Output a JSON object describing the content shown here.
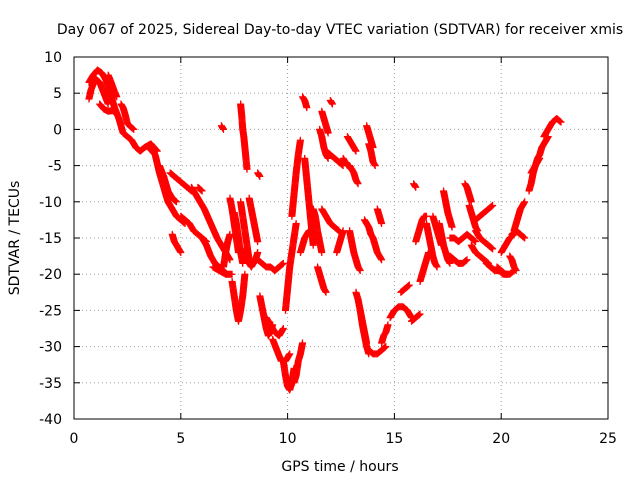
{
  "chart_data": {
    "type": "scatter",
    "title": "Day 067 of 2025, Sidereal Day-to-day VTEC variation (SDTVAR) for receiver xmis",
    "xlabel": "GPS time / hours",
    "ylabel": "SDTVAR / TECUs",
    "xlim": [
      0,
      25
    ],
    "ylim": [
      -40,
      10
    ],
    "xticks": [
      0,
      5,
      10,
      15,
      20,
      25
    ],
    "yticks": [
      10,
      5,
      0,
      -5,
      -10,
      -15,
      -20,
      -25,
      -30,
      -35,
      -40
    ],
    "grid": true,
    "legend": "none",
    "marker": "plus",
    "color": "#ff0000",
    "tracks": [
      {
        "x": [
          0.7,
          0.9,
          1.1,
          1.3,
          1.5,
          1.7,
          1.9,
          2.1,
          2.3,
          2.5,
          2.7,
          2.9,
          3.1,
          3.3,
          3.6,
          3.9
        ],
        "y": [
          6.5,
          7.5,
          8.2,
          7.8,
          6.8,
          5.0,
          3.0,
          1.5,
          -0.5,
          -1.0,
          -1.5,
          -2.5,
          -3.0,
          -2.5,
          -2.0,
          -3.0
        ]
      },
      {
        "x": [
          0.7,
          0.8,
          1.0,
          1.2,
          1.4,
          1.6
        ],
        "y": [
          4.2,
          5.5,
          7.0,
          6.5,
          5.0,
          3.5
        ]
      },
      {
        "x": [
          1.2,
          1.4,
          1.6,
          1.8,
          2.0
        ],
        "y": [
          3.5,
          2.8,
          2.5,
          2.6,
          2.2
        ]
      },
      {
        "x": [
          1.6,
          1.7,
          1.8,
          1.9,
          2.0
        ],
        "y": [
          7.5,
          6.8,
          6.0,
          5.2,
          4.5
        ]
      },
      {
        "x": [
          2.2,
          2.3,
          2.4,
          2.5,
          2.6,
          2.8
        ],
        "y": [
          3.5,
          3.0,
          2.0,
          0.8,
          0.5,
          0.0
        ]
      },
      {
        "x": [
          3.5,
          3.8,
          4.0,
          4.2,
          4.4,
          4.6,
          4.8,
          5.0,
          5.2
        ],
        "y": [
          -2.5,
          -3.5,
          -6.0,
          -8.0,
          -10.0,
          -11.0,
          -12.0,
          -12.5,
          -13.0
        ]
      },
      {
        "x": [
          4.0,
          4.2,
          4.4,
          4.6,
          4.8
        ],
        "y": [
          -5.0,
          -6.5,
          -8.5,
          -9.5,
          -10.0
        ]
      },
      {
        "x": [
          4.5,
          4.7,
          4.9,
          5.1,
          5.3,
          5.5
        ],
        "y": [
          -6.0,
          -6.5,
          -7.0,
          -7.5,
          -8.0,
          -8.5
        ]
      },
      {
        "x": [
          5.0,
          5.2,
          5.4,
          5.6,
          5.8,
          6.0,
          6.2
        ],
        "y": [
          -12.0,
          -12.5,
          -13.0,
          -14.0,
          -14.5,
          -15.0,
          -15.5
        ]
      },
      {
        "x": [
          4.6,
          4.7,
          4.8,
          4.9,
          5.0
        ],
        "y": [
          -14.5,
          -15.5,
          -16.0,
          -16.5,
          -17.0
        ]
      },
      {
        "x": [
          5.5,
          5.8,
          6.1,
          6.4,
          6.7,
          7.0,
          7.3
        ],
        "y": [
          -8.0,
          -9.5,
          -11.0,
          -13.0,
          -15.0,
          -16.5,
          -18.0
        ]
      },
      {
        "x": [
          6.0,
          6.2,
          6.4,
          6.6,
          6.8,
          7.0
        ],
        "y": [
          -15.0,
          -16.0,
          -17.5,
          -18.5,
          -19.0,
          -19.5
        ]
      },
      {
        "x": [
          6.5,
          6.8,
          7.1,
          7.4
        ],
        "y": [
          -19.0,
          -19.5,
          -20.0,
          -20.0
        ]
      },
      {
        "x": [
          5.8,
          6.0
        ],
        "y": [
          -8.0,
          -8.5
        ]
      },
      {
        "x": [
          6.9,
          7.0
        ],
        "y": [
          0.5,
          0.0
        ]
      },
      {
        "x": [
          7.0,
          7.1,
          7.2,
          7.3
        ],
        "y": [
          -19.0,
          -17.0,
          -15.5,
          -14.5
        ]
      },
      {
        "x": [
          7.4,
          7.5,
          7.6,
          7.7,
          7.8,
          7.9,
          8.0
        ],
        "y": [
          -21.0,
          -23.0,
          -25.0,
          -26.5,
          -25.0,
          -23.0,
          -20.0
        ]
      },
      {
        "x": [
          7.3,
          7.4,
          7.5,
          7.6,
          7.7
        ],
        "y": [
          -9.5,
          -11.0,
          -13.0,
          -15.0,
          -17.0
        ]
      },
      {
        "x": [
          7.5,
          7.6,
          7.7,
          7.8,
          7.9
        ],
        "y": [
          -11.5,
          -13.0,
          -15.0,
          -17.0,
          -18.5
        ]
      },
      {
        "x": [
          7.8,
          7.85,
          7.9,
          7.95,
          8.0,
          8.05,
          8.1
        ],
        "y": [
          3.5,
          2.0,
          0.0,
          -1.0,
          -2.5,
          -4.0,
          -5.5
        ]
      },
      {
        "x": [
          7.8,
          7.9,
          8.0,
          8.1,
          8.2
        ],
        "y": [
          -10.0,
          -12.0,
          -14.0,
          -16.0,
          -18.0
        ]
      },
      {
        "x": [
          8.0,
          8.1,
          8.2,
          8.3,
          8.4,
          8.5,
          8.6
        ],
        "y": [
          -16.5,
          -17.5,
          -18.5,
          -19.0,
          -18.5,
          -18.0,
          -17.0
        ]
      },
      {
        "x": [
          8.2,
          8.3,
          8.4,
          8.5,
          8.6
        ],
        "y": [
          -9.5,
          -11.0,
          -12.5,
          -14.0,
          -15.5
        ]
      },
      {
        "x": [
          8.6,
          8.7
        ],
        "y": [
          -6.0,
          -6.5
        ]
      },
      {
        "x": [
          8.6,
          8.8,
          9.0,
          9.2,
          9.4,
          9.6,
          9.8
        ],
        "y": [
          -18.0,
          -18.5,
          -19.0,
          -19.0,
          -19.5,
          -19.0,
          -18.5
        ]
      },
      {
        "x": [
          8.7,
          8.8,
          8.9,
          9.0,
          9.1,
          9.2,
          9.3
        ],
        "y": [
          -23.0,
          -24.5,
          -26.0,
          -27.5,
          -28.5,
          -28.0,
          -27.0
        ]
      },
      {
        "x": [
          9.0,
          9.2,
          9.4,
          9.6,
          9.8
        ],
        "y": [
          -26.0,
          -27.0,
          -28.0,
          -28.5,
          -27.5
        ]
      },
      {
        "x": [
          9.3,
          9.5,
          9.7,
          9.9,
          10.1
        ],
        "y": [
          -29.0,
          -30.5,
          -32.0,
          -32.0,
          -31.0
        ]
      },
      {
        "x": [
          9.8,
          9.9,
          10.0,
          10.1,
          10.2,
          10.3
        ],
        "y": [
          -32.0,
          -34.0,
          -35.5,
          -36.0,
          -35.0,
          -33.0
        ]
      },
      {
        "x": [
          9.9,
          10.0,
          10.1,
          10.2,
          10.3,
          10.4
        ],
        "y": [
          -25.0,
          -22.0,
          -19.0,
          -17.0,
          -15.0,
          -13.0
        ]
      },
      {
        "x": [
          10.2,
          10.3,
          10.4,
          10.5,
          10.6
        ],
        "y": [
          -12.0,
          -9.0,
          -6.0,
          -3.5,
          -1.5
        ]
      },
      {
        "x": [
          10.3,
          10.4,
          10.5,
          10.6,
          10.7
        ],
        "y": [
          -35.0,
          -34.0,
          -32.0,
          -31.0,
          -29.5
        ]
      },
      {
        "x": [
          10.6,
          10.7,
          10.8,
          10.9,
          11.0
        ],
        "y": [
          -17.0,
          -16.0,
          -15.0,
          -14.5,
          -14.0
        ]
      },
      {
        "x": [
          10.8,
          10.9,
          11.0,
          11.1,
          11.2
        ],
        "y": [
          -4.0,
          -7.0,
          -10.0,
          -13.0,
          -16.0
        ]
      },
      {
        "x": [
          10.7,
          10.8,
          10.9
        ],
        "y": [
          4.5,
          4.0,
          3.0
        ]
      },
      {
        "x": [
          11.2,
          11.3,
          11.4,
          11.5,
          11.6
        ],
        "y": [
          -11.0,
          -12.0,
          -14.0,
          -15.5,
          -17.0
        ]
      },
      {
        "x": [
          11.4,
          11.5,
          11.6,
          11.7,
          11.8
        ],
        "y": [
          -19.0,
          -20.0,
          -21.0,
          -22.0,
          -22.5
        ]
      },
      {
        "x": [
          11.5,
          11.6,
          11.7,
          11.8,
          11.9
        ],
        "y": [
          0.0,
          -1.0,
          -2.5,
          -3.5,
          -4.0
        ]
      },
      {
        "x": [
          11.6,
          11.7,
          11.8,
          11.9
        ],
        "y": [
          2.5,
          1.5,
          0.5,
          -0.5
        ]
      },
      {
        "x": [
          11.6,
          11.8,
          12.0,
          12.2,
          12.4
        ],
        "y": [
          -11.0,
          -12.0,
          -13.0,
          -13.5,
          -14.0
        ]
      },
      {
        "x": [
          11.8,
          12.0,
          12.2,
          12.4,
          12.6
        ],
        "y": [
          -3.0,
          -3.5,
          -4.0,
          -4.5,
          -5.0
        ]
      },
      {
        "x": [
          12.0,
          12.1
        ],
        "y": [
          4.0,
          3.5
        ]
      },
      {
        "x": [
          12.3,
          12.4,
          12.5,
          12.6
        ],
        "y": [
          -17.0,
          -16.0,
          -15.0,
          -14.0
        ]
      },
      {
        "x": [
          12.6,
          12.7,
          12.8,
          12.9,
          13.0
        ],
        "y": [
          -4.0,
          -4.5,
          -5.0,
          -5.0,
          -5.5
        ]
      },
      {
        "x": [
          12.8,
          12.9,
          13.0,
          13.1,
          13.2
        ],
        "y": [
          -1.0,
          -1.5,
          -2.0,
          -2.5,
          -3.0
        ]
      },
      {
        "x": [
          12.9,
          13.0,
          13.1,
          13.2,
          13.3,
          13.4
        ],
        "y": [
          -14.0,
          -15.5,
          -17.0,
          -18.0,
          -19.0,
          -19.5
        ]
      },
      {
        "x": [
          13.0,
          13.1,
          13.2,
          13.3
        ],
        "y": [
          -5.5,
          -6.0,
          -7.0,
          -7.5
        ]
      },
      {
        "x": [
          13.2,
          13.3,
          13.4,
          13.5,
          13.6,
          13.7
        ],
        "y": [
          -22.5,
          -23.5,
          -25.0,
          -26.5,
          -28.0,
          -29.5
        ]
      },
      {
        "x": [
          13.4,
          13.5,
          13.6,
          13.7,
          13.8
        ],
        "y": [
          -25.0,
          -27.0,
          -28.5,
          -30.0,
          -31.0
        ]
      },
      {
        "x": [
          13.6,
          13.7,
          13.8,
          13.9,
          14.0
        ],
        "y": [
          -12.5,
          -13.0,
          -13.5,
          -14.5,
          -15.0
        ]
      },
      {
        "x": [
          13.7,
          13.8,
          13.9,
          14.0
        ],
        "y": [
          0.5,
          -0.5,
          -1.5,
          -2.5
        ]
      },
      {
        "x": [
          13.8,
          13.9,
          14.0,
          14.1
        ],
        "y": [
          -2.0,
          -3.0,
          -4.5,
          -5.0
        ]
      },
      {
        "x": [
          13.8,
          14.0,
          14.2,
          14.4,
          14.6
        ],
        "y": [
          -30.5,
          -31.0,
          -31.0,
          -30.5,
          -30.0
        ]
      },
      {
        "x": [
          14.0,
          14.1,
          14.2,
          14.3,
          14.4
        ],
        "y": [
          -15.0,
          -16.0,
          -17.0,
          -17.5,
          -18.0
        ]
      },
      {
        "x": [
          14.2,
          14.3,
          14.4
        ],
        "y": [
          -11.0,
          -12.0,
          -13.0
        ]
      },
      {
        "x": [
          14.4,
          14.5,
          14.6,
          14.7
        ],
        "y": [
          -29.5,
          -28.5,
          -28.0,
          -27.0
        ]
      },
      {
        "x": [
          14.8,
          15.0,
          15.2,
          15.4,
          15.6,
          15.8
        ],
        "y": [
          -26.0,
          -25.0,
          -24.5,
          -24.5,
          -25.0,
          -26.0
        ]
      },
      {
        "x": [
          15.3,
          15.5,
          15.7
        ],
        "y": [
          -22.5,
          -22.0,
          -21.5
        ]
      },
      {
        "x": [
          15.8,
          16.0,
          16.2
        ],
        "y": [
          -26.5,
          -26.0,
          -25.5
        ]
      },
      {
        "x": [
          15.9,
          16.0
        ],
        "y": [
          -7.5,
          -8.0
        ]
      },
      {
        "x": [
          16.0,
          16.1,
          16.2,
          16.3,
          16.4,
          16.5
        ],
        "y": [
          -15.5,
          -14.5,
          -13.5,
          -12.5,
          -12.0,
          -12.0
        ]
      },
      {
        "x": [
          16.2,
          16.3,
          16.4,
          16.5,
          16.6
        ],
        "y": [
          -21.0,
          -20.0,
          -19.0,
          -18.0,
          -17.0
        ]
      },
      {
        "x": [
          16.5,
          16.6,
          16.7,
          16.8,
          16.9,
          17.0
        ],
        "y": [
          -13.0,
          -14.5,
          -16.0,
          -17.5,
          -18.5,
          -19.0
        ]
      },
      {
        "x": [
          16.8,
          16.9,
          17.0,
          17.1,
          17.2
        ],
        "y": [
          -12.0,
          -13.0,
          -14.0,
          -15.0,
          -16.0
        ]
      },
      {
        "x": [
          17.1,
          17.2,
          17.3,
          17.4,
          17.5,
          17.6
        ],
        "y": [
          -13.0,
          -14.5,
          -16.0,
          -17.0,
          -18.0,
          -18.5
        ]
      },
      {
        "x": [
          17.3,
          17.4,
          17.5,
          17.6,
          17.7
        ],
        "y": [
          -8.5,
          -10.0,
          -11.5,
          -12.5,
          -13.5
        ]
      },
      {
        "x": [
          17.6,
          17.8,
          18.0,
          18.2,
          18.4
        ],
        "y": [
          -17.5,
          -18.0,
          -18.5,
          -18.5,
          -18.0
        ]
      },
      {
        "x": [
          17.6,
          17.8,
          18.0,
          18.2,
          18.4,
          18.6,
          18.8
        ],
        "y": [
          -15.0,
          -15.0,
          -15.5,
          -15.0,
          -14.5,
          -15.0,
          -15.5
        ]
      },
      {
        "x": [
          18.3,
          18.4,
          18.5,
          18.6
        ],
        "y": [
          -7.5,
          -8.0,
          -9.0,
          -10.0
        ]
      },
      {
        "x": [
          18.5,
          18.6,
          18.7,
          18.8,
          18.9
        ],
        "y": [
          -10.5,
          -11.5,
          -12.5,
          -13.5,
          -14.0
        ]
      },
      {
        "x": [
          18.6,
          18.8,
          19.0,
          19.2,
          19.4
        ],
        "y": [
          -16.0,
          -17.0,
          -17.5,
          -18.0,
          -18.5
        ]
      },
      {
        "x": [
          18.8,
          19.0,
          19.2,
          19.4,
          19.6
        ],
        "y": [
          -14.0,
          -15.0,
          -15.5,
          -16.0,
          -16.5
        ]
      },
      {
        "x": [
          18.8,
          19.0,
          19.2,
          19.4,
          19.6
        ],
        "y": [
          -12.5,
          -12.0,
          -11.5,
          -11.0,
          -10.5
        ]
      },
      {
        "x": [
          19.3,
          19.5,
          19.7,
          19.9,
          20.1,
          20.3
        ],
        "y": [
          -18.5,
          -19.0,
          -19.5,
          -19.5,
          -20.0,
          -20.0
        ]
      },
      {
        "x": [
          19.8,
          20.0,
          20.2,
          20.4,
          20.6
        ],
        "y": [
          -19.0,
          -19.5,
          -20.0,
          -20.0,
          -19.5
        ]
      },
      {
        "x": [
          20.0,
          20.2,
          20.4,
          20.6
        ],
        "y": [
          -17.0,
          -16.0,
          -15.0,
          -14.5
        ]
      },
      {
        "x": [
          20.4,
          20.5,
          20.6,
          20.7
        ],
        "y": [
          -17.5,
          -18.0,
          -19.0,
          -19.5
        ]
      },
      {
        "x": [
          20.5,
          20.7,
          20.9,
          21.1
        ],
        "y": [
          -14.5,
          -14.0,
          -14.5,
          -15.0
        ]
      },
      {
        "x": [
          20.6,
          20.7,
          20.8,
          20.9,
          21.0,
          21.1
        ],
        "y": [
          -14.0,
          -13.0,
          -12.0,
          -11.0,
          -10.5,
          -10.0
        ]
      },
      {
        "x": [
          21.3,
          21.4,
          21.5,
          21.6,
          21.7,
          21.8,
          21.9,
          22.0,
          22.2
        ],
        "y": [
          -8.5,
          -7.5,
          -6.0,
          -5.0,
          -4.0,
          -3.5,
          -2.5,
          -2.0,
          -1.0
        ]
      },
      {
        "x": [
          21.4,
          21.5,
          21.6,
          21.7,
          21.8
        ],
        "y": [
          -6.0,
          -5.5,
          -5.0,
          -4.5,
          -4.0
        ]
      },
      {
        "x": [
          22.0,
          22.2,
          22.4,
          22.6,
          22.8
        ],
        "y": [
          -1.0,
          0.0,
          1.0,
          1.5,
          1.0
        ]
      }
    ]
  }
}
